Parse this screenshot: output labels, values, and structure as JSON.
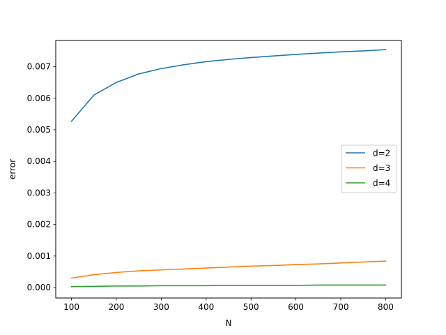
{
  "chart_data": {
    "type": "line",
    "xlabel": "N",
    "ylabel": "error",
    "xlim": [
      65,
      835
    ],
    "ylim": [
      -0.00033,
      0.00783
    ],
    "xticks": [
      100,
      200,
      300,
      400,
      500,
      600,
      700,
      800
    ],
    "yticks": [
      0.0,
      0.001,
      0.002,
      0.003,
      0.004,
      0.005,
      0.006,
      0.007
    ],
    "ytick_labels": [
      "0.000",
      "0.001",
      "0.002",
      "0.003",
      "0.004",
      "0.005",
      "0.006",
      "0.007"
    ],
    "grid": false,
    "legend_position": "center-right",
    "x": [
      100,
      150,
      200,
      250,
      300,
      350,
      400,
      450,
      500,
      550,
      600,
      650,
      700,
      750,
      800
    ],
    "series": [
      {
        "name": "d=2",
        "color": "#1f77b4",
        "values": [
          0.00527,
          0.0061,
          0.0065,
          0.00677,
          0.00694,
          0.00706,
          0.00716,
          0.00723,
          0.00729,
          0.00734,
          0.00739,
          0.00743,
          0.00747,
          0.0075,
          0.00754
        ]
      },
      {
        "name": "d=3",
        "color": "#ff7f0e",
        "values": [
          0.0003,
          0.00041,
          0.00048,
          0.00053,
          0.00056,
          0.00059,
          0.00062,
          0.00065,
          0.00068,
          0.0007,
          0.00073,
          0.00075,
          0.00078,
          0.00081,
          0.00084
        ]
      },
      {
        "name": "d=4",
        "color": "#2ca02c",
        "values": [
          3e-05,
          4e-05,
          5e-05,
          5e-05,
          6e-05,
          6e-05,
          6e-05,
          7e-05,
          7e-05,
          7e-05,
          7e-05,
          8e-05,
          8e-05,
          8e-05,
          8e-05
        ]
      }
    ]
  }
}
